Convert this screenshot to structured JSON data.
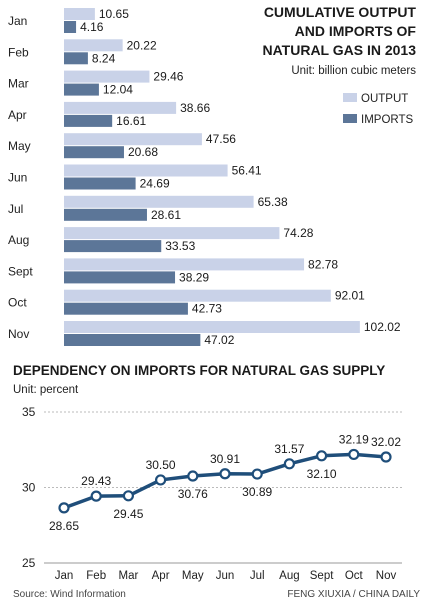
{
  "colors": {
    "output": "#c9d2e8",
    "imports": "#5c7698",
    "line": "#1f4e7a",
    "grid": "#bbbbbb"
  },
  "bar_title_lines": [
    "CUMULATIVE OUTPUT",
    "AND IMPORTS OF",
    "NATURAL GAS IN 2013"
  ],
  "bar_unit": "Unit: billion cubic meters",
  "line_title": "DEPENDENCY ON IMPORTS FOR NATURAL GAS SUPPLY",
  "line_unit": "Unit: percent",
  "source": "Source: Wind Information",
  "credit": "FENG XIUXIA / CHINA DAILY",
  "chart_data": [
    {
      "type": "bar",
      "title": "CUMULATIVE OUTPUT AND IMPORTS OF NATURAL GAS IN 2013",
      "unit": "Unit: billion cubic meters",
      "categories": [
        "Jan",
        "Feb",
        "Mar",
        "Apr",
        "May",
        "Jun",
        "Jul",
        "Aug",
        "Sept",
        "Oct",
        "Nov"
      ],
      "series": [
        {
          "name": "OUTPUT",
          "values": [
            10.65,
            20.22,
            29.46,
            38.66,
            47.56,
            56.41,
            65.38,
            74.28,
            82.78,
            92.01,
            102.02
          ]
        },
        {
          "name": "IMPORTS",
          "values": [
            4.16,
            8.24,
            12.04,
            16.61,
            20.68,
            24.69,
            28.61,
            33.53,
            38.29,
            42.73,
            47.02
          ]
        }
      ],
      "legend_position": "right"
    },
    {
      "type": "line",
      "title": "DEPENDENCY ON IMPORTS FOR NATURAL GAS SUPPLY",
      "unit": "Unit: percent",
      "categories": [
        "Jan",
        "Feb",
        "Mar",
        "Apr",
        "May",
        "Jun",
        "Jul",
        "Aug",
        "Sept",
        "Oct",
        "Nov"
      ],
      "values": [
        28.65,
        29.43,
        29.45,
        30.5,
        30.76,
        30.91,
        30.89,
        31.57,
        32.1,
        32.19,
        32.02
      ],
      "value_labels": [
        "28.65",
        "29.43",
        "29.45",
        "30.50",
        "30.76",
        "30.91",
        "30.89",
        "31.57",
        "32.10",
        "32.19",
        "32.02"
      ],
      "label_position": [
        "below",
        "above",
        "below",
        "above",
        "below",
        "above",
        "below",
        "above",
        "below",
        "above",
        "above"
      ],
      "ylim": [
        25,
        35
      ],
      "yticks": [
        25,
        30,
        35
      ],
      "grid": true
    }
  ]
}
